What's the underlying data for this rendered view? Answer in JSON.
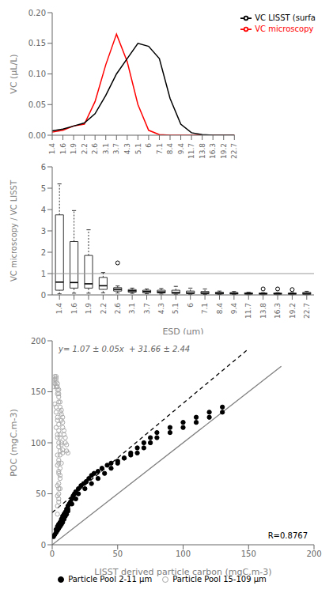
{
  "chart_data": [
    {
      "type": "line",
      "categories": [
        "1.4",
        "1.6",
        "1.9",
        "2.2",
        "2.6",
        "3.1",
        "3.7",
        "4.3",
        "5.1",
        "6",
        "7.1",
        "8.4",
        "9.4",
        "11.7",
        "13.8",
        "16.3",
        "19.2",
        "22.7"
      ],
      "series": [
        {
          "name": "VC microscopy",
          "color": "red",
          "values": [
            0.005,
            0.008,
            0.015,
            0.018,
            0.055,
            0.115,
            0.165,
            0.12,
            0.05,
            0.008,
            0.001,
            0.0,
            0.0,
            0.0,
            0.0,
            0.0,
            0.0,
            0.0
          ]
        },
        {
          "name": "VC LISST (surfa",
          "color": "black",
          "values": [
            0.007,
            0.01,
            0.015,
            0.02,
            0.035,
            0.065,
            0.1,
            0.125,
            0.15,
            0.145,
            0.125,
            0.06,
            0.018,
            0.004,
            0.001,
            0.0,
            0.0,
            0.0
          ]
        }
      ],
      "ylabel": "VC (μL/L)",
      "ylim": [
        0.0,
        0.2
      ],
      "yticks": [
        {
          "value": 0,
          "label": "0.00"
        },
        {
          "value": 0.05,
          "label": "0.05"
        },
        {
          "value": 0.1,
          "label": "0.10"
        },
        {
          "value": 0.15,
          "label": "0.15"
        },
        {
          "value": 0.2,
          "label": "0.20"
        }
      ],
      "legend": "right",
      "grid": false
    },
    {
      "type": "box",
      "categories": [
        "1.4",
        "1.6",
        "1.9",
        "2.2",
        "2.6",
        "3.1",
        "3.7",
        "4.3",
        "5.1",
        "6",
        "7.1",
        "8.4",
        "9.4",
        "11.7",
        "13.8",
        "16.3",
        "19.2",
        "22.7"
      ],
      "boxes": [
        {
          "q1": 0.22,
          "med": 0.6,
          "q3": 3.75,
          "whislo": 0.05,
          "whishi": 5.2,
          "fliers": []
        },
        {
          "q1": 0.32,
          "med": 0.58,
          "q3": 2.5,
          "whislo": 0.08,
          "whishi": 3.95,
          "fliers": []
        },
        {
          "q1": 0.32,
          "med": 0.52,
          "q3": 1.85,
          "whislo": 0.08,
          "whishi": 3.05,
          "fliers": []
        },
        {
          "q1": 0.26,
          "med": 0.43,
          "q3": 0.82,
          "whislo": 0.1,
          "whishi": 1.05,
          "fliers": []
        },
        {
          "q1": 0.18,
          "med": 0.26,
          "q3": 0.34,
          "whislo": 0.09,
          "whishi": 0.42,
          "fliers": [
            1.5
          ]
        },
        {
          "q1": 0.13,
          "med": 0.19,
          "q3": 0.25,
          "whislo": 0.07,
          "whishi": 0.32,
          "fliers": []
        },
        {
          "q1": 0.1,
          "med": 0.16,
          "q3": 0.22,
          "whislo": 0.05,
          "whishi": 0.28,
          "fliers": []
        },
        {
          "q1": 0.09,
          "med": 0.14,
          "q3": 0.22,
          "whislo": 0.04,
          "whishi": 0.3,
          "fliers": []
        },
        {
          "q1": 0.07,
          "med": 0.11,
          "q3": 0.22,
          "whislo": 0.03,
          "whishi": 0.4,
          "fliers": []
        },
        {
          "q1": 0.06,
          "med": 0.09,
          "q3": 0.18,
          "whislo": 0.03,
          "whishi": 0.32,
          "fliers": []
        },
        {
          "q1": 0.05,
          "med": 0.09,
          "q3": 0.16,
          "whislo": 0.02,
          "whishi": 0.28,
          "fliers": []
        },
        {
          "q1": 0.04,
          "med": 0.07,
          "q3": 0.13,
          "whislo": 0.02,
          "whishi": 0.18,
          "fliers": []
        },
        {
          "q1": 0.04,
          "med": 0.07,
          "q3": 0.11,
          "whislo": 0.02,
          "whishi": 0.16,
          "fliers": []
        },
        {
          "q1": 0.03,
          "med": 0.06,
          "q3": 0.1,
          "whislo": 0.01,
          "whishi": 0.13,
          "fliers": []
        },
        {
          "q1": 0.03,
          "med": 0.05,
          "q3": 0.09,
          "whislo": 0.01,
          "whishi": 0.11,
          "fliers": [
            0.28
          ]
        },
        {
          "q1": 0.03,
          "med": 0.05,
          "q3": 0.09,
          "whislo": 0.01,
          "whishi": 0.11,
          "fliers": [
            0.28
          ]
        },
        {
          "q1": 0.03,
          "med": 0.05,
          "q3": 0.09,
          "whislo": 0.01,
          "whishi": 0.11,
          "fliers": [
            0.25
          ]
        },
        {
          "q1": 0.02,
          "med": 0.06,
          "q3": 0.12,
          "whislo": 0.01,
          "whishi": 0.17,
          "fliers": []
        }
      ],
      "reference_line": 1.0,
      "ylabel": "VC microscopy / VC LISST",
      "xlabel": "ESD (μm)",
      "ylim": [
        0,
        6
      ],
      "yticks": [
        0,
        1,
        2,
        3,
        4,
        5,
        6
      ],
      "grid": false
    },
    {
      "type": "scatter",
      "series": [
        {
          "name": "Particle Pool 2-11 μm",
          "color": "black",
          "marker": "filled",
          "x": [
            1,
            2,
            3,
            3,
            4,
            4,
            5,
            5,
            6,
            6,
            7,
            7,
            8,
            8,
            9,
            9,
            10,
            10,
            11,
            11,
            12,
            12,
            13,
            14,
            15,
            16,
            17,
            18,
            20,
            22,
            24,
            26,
            28,
            30,
            32,
            35,
            38,
            42,
            45,
            50,
            55,
            60,
            65,
            70,
            75,
            80,
            90,
            100,
            110,
            120,
            130,
            5,
            8,
            10,
            12,
            15,
            18,
            20,
            25,
            30,
            35,
            40,
            45,
            50,
            55,
            60,
            65,
            70,
            75,
            80,
            90,
            100,
            110,
            120,
            130
          ],
          "values": [
            8,
            10,
            12,
            15,
            14,
            18,
            16,
            20,
            18,
            22,
            20,
            25,
            22,
            28,
            25,
            30,
            28,
            32,
            30,
            35,
            33,
            38,
            40,
            42,
            45,
            48,
            50,
            52,
            55,
            58,
            60,
            62,
            65,
            68,
            70,
            72,
            75,
            78,
            80,
            82,
            85,
            88,
            90,
            95,
            100,
            105,
            110,
            115,
            120,
            125,
            130,
            20,
            25,
            30,
            35,
            40,
            45,
            50,
            55,
            60,
            65,
            70,
            75,
            80,
            85,
            90,
            95,
            100,
            105,
            110,
            115,
            120,
            125,
            130,
            135
          ]
        },
        {
          "name": "Particle Pool 15-109 μm",
          "color": "#aaaaaa",
          "marker": "hollow",
          "x": [
            1,
            1,
            2,
            2,
            2,
            3,
            3,
            3,
            3,
            4,
            4,
            4,
            4,
            5,
            5,
            5,
            5,
            6,
            6,
            6,
            7,
            7,
            7,
            8,
            8,
            8,
            9,
            9,
            10,
            10,
            11,
            11,
            12,
            2,
            3,
            3,
            4,
            4,
            5,
            5,
            6,
            6,
            7,
            7,
            8,
            8,
            3,
            4,
            4,
            5,
            5,
            6,
            6,
            7,
            4,
            5,
            5,
            6,
            5,
            6,
            5,
            6,
            5,
            5,
            4,
            5,
            6,
            4,
            5,
            4,
            5,
            4,
            4
          ],
          "values": [
            155,
            160,
            158,
            162,
            165,
            155,
            160,
            163,
            165,
            148,
            152,
            155,
            158,
            140,
            145,
            148,
            152,
            130,
            135,
            140,
            122,
            128,
            132,
            115,
            120,
            125,
            108,
            112,
            100,
            105,
            92,
            98,
            90,
            138,
            130,
            135,
            122,
            125,
            112,
            118,
            105,
            108,
            98,
            100,
            90,
            93,
            115,
            105,
            108,
            96,
            100,
            88,
            92,
            80,
            88,
            80,
            83,
            75,
            70,
            65,
            60,
            55,
            50,
            45,
            78,
            72,
            68,
            58,
            55,
            48,
            42,
            38,
            30
          ]
        }
      ],
      "lines": [
        {
          "color": "gray",
          "line_style": "solid",
          "x": [
            0,
            175
          ],
          "values": [
            0,
            175
          ]
        },
        {
          "color": "black",
          "line_style": "dashed",
          "x": [
            0,
            150
          ],
          "values": [
            31.66,
            192.16
          ]
        }
      ],
      "annotations": [
        "y= 1.07 ± 0.05x  + 31.66 ± 2.44",
        "R=0.8767"
      ],
      "xlabel": "LISST derived particle carbon (mgC.m-3)",
      "ylabel": "POC (mgC.m-3)",
      "xlim": [
        0,
        200
      ],
      "ylim": [
        0,
        200
      ],
      "xticks": [
        0,
        50,
        100,
        150,
        200
      ],
      "yticks": [
        0,
        50,
        100,
        150,
        200
      ],
      "legend": "bottom",
      "grid": false
    }
  ]
}
